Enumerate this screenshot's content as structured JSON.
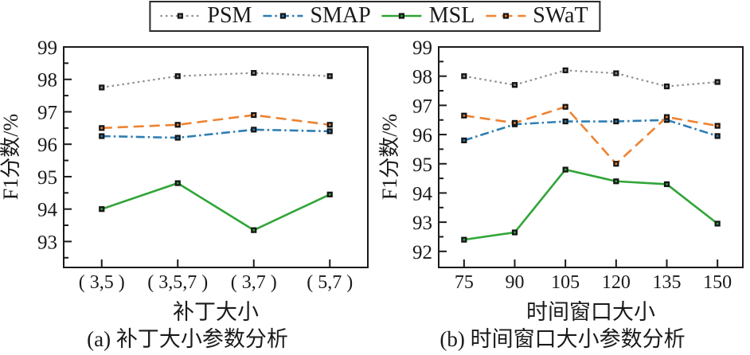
{
  "page": {
    "background": "#ffffff",
    "axis_color": "#1a1a1a"
  },
  "legend": {
    "position": "top-center",
    "marker": {
      "fill": "#161616"
    },
    "items": [
      {
        "label": "PSM",
        "color": "#8f8f8f",
        "dash": "2.5 4",
        "width": 2.2
      },
      {
        "label": "SMAP",
        "color": "#2e7eb3",
        "dash": "11 4 2.5 4",
        "width": 2.6
      },
      {
        "label": "MSL",
        "color": "#31a538",
        "dash": "",
        "width": 2.6
      },
      {
        "label": "SWaT",
        "color": "#ee8331",
        "dash": "13 7",
        "width": 2.6
      }
    ]
  },
  "chart_data": [
    {
      "id": "patch-size",
      "type": "line",
      "caption": "(a) 补丁大小参数分析",
      "xlabel": "补丁大小",
      "ylabel": "F1分数/%",
      "categories": [
        "( 3,5 )",
        "( 3,5,7 )",
        "( 3,7 )",
        "( 5,7 )"
      ],
      "ylim": [
        92.2,
        99
      ],
      "yticks": [
        93,
        94,
        95,
        96,
        97,
        98,
        99
      ],
      "minor_tick_step": 0.5,
      "grid": false,
      "series": [
        {
          "name": "PSM",
          "values": [
            97.75,
            98.1,
            98.2,
            98.1
          ]
        },
        {
          "name": "SMAP",
          "values": [
            96.25,
            96.2,
            96.45,
            96.4
          ]
        },
        {
          "name": "MSL",
          "values": [
            94.0,
            94.8,
            93.35,
            94.45
          ]
        },
        {
          "name": "SWaT",
          "values": [
            96.5,
            96.6,
            96.9,
            96.6
          ]
        }
      ]
    },
    {
      "id": "time-window",
      "type": "line",
      "caption": "(b) 时间窗口大小参数分析",
      "xlabel": "时间窗口大小",
      "ylabel": "F1分数/%",
      "categories": [
        "75",
        "90",
        "105",
        "120",
        "135",
        "150"
      ],
      "ylim": [
        91.45,
        99
      ],
      "yticks": [
        92,
        93,
        94,
        95,
        96,
        97,
        98,
        99
      ],
      "minor_tick_step": 0.5,
      "grid": false,
      "series": [
        {
          "name": "PSM",
          "values": [
            98.0,
            97.7,
            98.2,
            98.1,
            97.65,
            97.8
          ]
        },
        {
          "name": "SMAP",
          "values": [
            95.8,
            96.35,
            96.45,
            96.45,
            96.5,
            95.95
          ]
        },
        {
          "name": "MSL",
          "values": [
            92.4,
            92.65,
            94.8,
            94.4,
            94.3,
            92.95
          ]
        },
        {
          "name": "SWaT",
          "values": [
            96.65,
            96.4,
            96.95,
            95.0,
            96.6,
            96.3
          ]
        }
      ]
    }
  ]
}
